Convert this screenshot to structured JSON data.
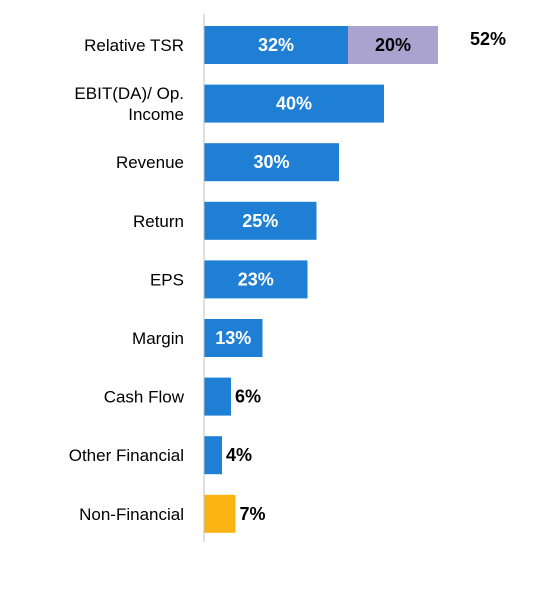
{
  "chart_data": {
    "type": "bar",
    "orientation": "horizontal",
    "stacked": true,
    "categories": [
      "Relative TSR",
      "EBIT(DA)/ Op. Income",
      "Revenue",
      "Return",
      "EPS",
      "Margin",
      "Cash Flow",
      "Other Financial",
      "Non-Financial"
    ],
    "category_lines": [
      [
        "Relative TSR"
      ],
      [
        "EBIT(DA)/ Op.",
        "Income"
      ],
      [
        "Revenue"
      ],
      [
        "Return"
      ],
      [
        "EPS"
      ],
      [
        "Margin"
      ],
      [
        "Cash Flow"
      ],
      [
        "Other Financial"
      ],
      [
        "Non-Financial"
      ]
    ],
    "series": [
      {
        "values": [
          32,
          40,
          30,
          25,
          23,
          13,
          6,
          4,
          7
        ],
        "labels": [
          "32%",
          "40%",
          "30%",
          "25%",
          "23%",
          "13%",
          "6%",
          "4%",
          "7%"
        ],
        "colors": [
          "#1f7fd4",
          "#1f7fd4",
          "#1f7fd4",
          "#1f7fd4",
          "#1f7fd4",
          "#1f7fd4",
          "#1f7fd4",
          "#1f7fd4",
          "#fcb314"
        ]
      },
      {
        "values": [
          20,
          0,
          0,
          0,
          0,
          0,
          0,
          0,
          0
        ],
        "labels": [
          "20%",
          "",
          "",
          "",
          "",
          "",
          "",
          "",
          ""
        ],
        "colors": [
          "#aaa3d0",
          "#aaa3d0",
          "#aaa3d0",
          "#aaa3d0",
          "#aaa3d0",
          "#aaa3d0",
          "#aaa3d0",
          "#aaa3d0",
          "#aaa3d0"
        ]
      }
    ],
    "totals": [
      {
        "index": 0,
        "label": "52%"
      }
    ],
    "xlim": [
      0,
      52
    ],
    "grid": false,
    "legend": "none",
    "axis_color": "#bfbfbf"
  }
}
